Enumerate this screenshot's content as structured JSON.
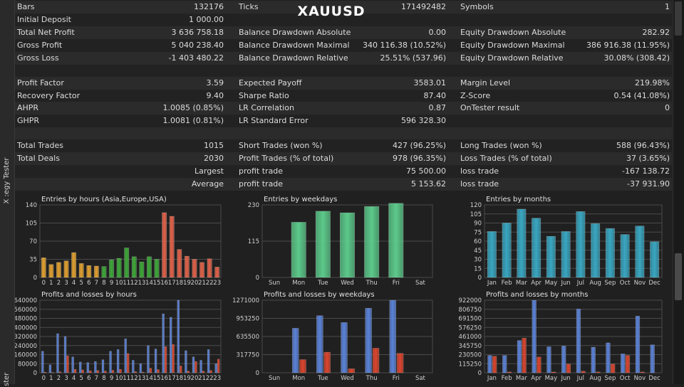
{
  "symbol_title": "XAUUSD",
  "panel_tab": "Strategy Tester",
  "panel_tab_visible": "X :egy Tester",
  "panel_tab_bottom": "ster",
  "rows": [
    {
      "c1": [
        "Bars",
        "132176"
      ],
      "c2": [
        "Ticks",
        "171492482"
      ],
      "c3": [
        "Symbols",
        "1"
      ]
    },
    {
      "c1": [
        "Initial Deposit",
        "1 000.00"
      ],
      "c2": [
        "",
        ""
      ],
      "c3": [
        "",
        ""
      ]
    },
    {
      "c1": [
        "Total Net Profit",
        "3 636 758.18"
      ],
      "c2": [
        "Balance Drawdown Absolute",
        "0.00"
      ],
      "c3": [
        "Equity Drawdown Absolute",
        "282.92"
      ]
    },
    {
      "c1": [
        "Gross Profit",
        "5 040 238.40"
      ],
      "c2": [
        "Balance Drawdown Maximal",
        "340 116.38 (10.52%)"
      ],
      "c3": [
        "Equity Drawdown Maximal",
        "386 916.38 (11.95%)"
      ]
    },
    {
      "c1": [
        "Gross Loss",
        "-1 403 480.22"
      ],
      "c2": [
        "Balance Drawdown Relative",
        "25.51% (537.96)"
      ],
      "c3": [
        "Equity Drawdown Relative",
        "30.08% (308.42)"
      ]
    },
    {
      "c1": [
        "",
        ""
      ],
      "c2": [
        "",
        ""
      ],
      "c3": [
        "",
        ""
      ]
    },
    {
      "c1": [
        "Profit Factor",
        "3.59"
      ],
      "c2": [
        "Expected Payoff",
        "3583.01"
      ],
      "c3": [
        "Margin Level",
        "219.98%"
      ]
    },
    {
      "c1": [
        "Recovery Factor",
        "9.40"
      ],
      "c2": [
        "Sharpe Ratio",
        "87.40"
      ],
      "c3": [
        "Z-Score",
        "0.54 (41.08%)"
      ]
    },
    {
      "c1": [
        "AHPR",
        "1.0085 (0.85%)"
      ],
      "c2": [
        "LR Correlation",
        "0.87"
      ],
      "c3": [
        "OnTester result",
        "0"
      ]
    },
    {
      "c1": [
        "GHPR",
        "1.0081 (0.81%)"
      ],
      "c2": [
        "LR Standard Error",
        "596 328.30"
      ],
      "c3": [
        "",
        ""
      ]
    },
    {
      "c1": [
        "",
        ""
      ],
      "c2": [
        "",
        ""
      ],
      "c3": [
        "",
        ""
      ]
    },
    {
      "c1": [
        "Total Trades",
        "1015"
      ],
      "c2": [
        "Short Trades (won %)",
        "427 (96.25%)"
      ],
      "c3": [
        "Long Trades (won %)",
        "588 (96.43%)"
      ]
    },
    {
      "c1": [
        "Total Deals",
        "2030"
      ],
      "c2": [
        "Profit Trades (% of total)",
        "978 (96.35%)"
      ],
      "c3": [
        "Loss Trades (% of total)",
        "37 (3.65%)"
      ]
    },
    {
      "c1": [
        "",
        "Largest"
      ],
      "c2": [
        "profit trade",
        "75 500.00"
      ],
      "c3": [
        "loss trade",
        "-167 138.72"
      ]
    },
    {
      "c1": [
        "",
        "Average"
      ],
      "c2": [
        "profit trade",
        "5 153.62"
      ],
      "c3": [
        "loss trade",
        "-37 931.90"
      ]
    }
  ],
  "colors": {
    "orange": "#e0a030",
    "green": "#3fa83a",
    "red": "#e0624a",
    "weekday_green": "#5cc98a",
    "teal": "#3aa6c0",
    "profit_blue": "#5b82d6",
    "loss_red": "#d9452f"
  },
  "chart_data": [
    {
      "type": "bar",
      "title": "Entries by hours (Asia,Europe,USA)",
      "categories": [
        "0",
        "1",
        "2",
        "3",
        "4",
        "5",
        "6",
        "7",
        "8",
        "9",
        "10",
        "11",
        "12",
        "13",
        "14",
        "15",
        "16",
        "17",
        "18",
        "19",
        "20",
        "21",
        "22",
        "23"
      ],
      "values": [
        38,
        25,
        29,
        32,
        48,
        27,
        23,
        22,
        21,
        34,
        37,
        57,
        40,
        30,
        40,
        35,
        125,
        118,
        54,
        41,
        35,
        29,
        36,
        20
      ],
      "bar_colors": [
        "orange",
        "orange",
        "orange",
        "orange",
        "orange",
        "orange",
        "orange",
        "orange",
        "green",
        "green",
        "green",
        "green",
        "green",
        "green",
        "green",
        "green",
        "red",
        "red",
        "red",
        "red",
        "red",
        "red",
        "red",
        "red"
      ],
      "yticks": [
        "140",
        "105",
        "70",
        "35",
        "0"
      ],
      "ylim": [
        0,
        140
      ]
    },
    {
      "type": "bar",
      "title": "Entries by weekdays",
      "categories": [
        "Sun",
        "Mon",
        "Tue",
        "Wed",
        "Thu",
        "Fri",
        "Sat"
      ],
      "values": [
        0,
        175,
        210,
        205,
        225,
        235,
        0
      ],
      "yticks": [
        "230",
        "115",
        "0"
      ],
      "ylim": [
        0,
        230
      ]
    },
    {
      "type": "bar",
      "title": "Entries by months",
      "categories": [
        "Jan",
        "Feb",
        "Mar",
        "Apr",
        "May",
        "Jun",
        "Jul",
        "Aug",
        "Sep",
        "Oct",
        "Nov",
        "Dec"
      ],
      "values": [
        76,
        90,
        113,
        98,
        68,
        76,
        109,
        89,
        81,
        71,
        85,
        59
      ],
      "yticks": [
        "120",
        "105",
        "90",
        "75",
        "60",
        "45",
        "30",
        "15",
        "0"
      ],
      "ylim": [
        0,
        120
      ]
    },
    {
      "type": "bar",
      "title": "Profits and losses by hours",
      "categories": [
        "0",
        "1",
        "2",
        "3",
        "4",
        "5",
        "6",
        "7",
        "8",
        "9",
        "10",
        "11",
        "12",
        "13",
        "14",
        "15",
        "16",
        "17",
        "18",
        "19",
        "20",
        "21",
        "22",
        "23"
      ],
      "series": [
        {
          "name": "profit",
          "values": [
            190000,
            70000,
            345000,
            320000,
            140000,
            95000,
            90000,
            100000,
            115000,
            190000,
            205000,
            300000,
            110000,
            80000,
            240000,
            210000,
            520000,
            490000,
            640000,
            195000,
            140000,
            110000,
            205000,
            80000
          ]
        },
        {
          "name": "loss",
          "values": [
            5000,
            3000,
            8000,
            150000,
            30000,
            25000,
            18000,
            20000,
            15000,
            22000,
            30000,
            170000,
            10000,
            6000,
            40000,
            28000,
            230000,
            250000,
            60000,
            15000,
            100000,
            15000,
            20000,
            120000
          ]
        }
      ],
      "yticks": [
        "640000",
        "560000",
        "480000",
        "400000",
        "320000",
        "240000",
        "160000",
        "80000",
        "0"
      ],
      "ylim": [
        0,
        640000
      ]
    },
    {
      "type": "bar",
      "title": "Profits and losses by weekdays",
      "categories": [
        "Sun",
        "Mon",
        "Tue",
        "Wed",
        "Thu",
        "Fri",
        "Sat"
      ],
      "series": [
        {
          "name": "profit",
          "values": [
            0,
            780000,
            1000000,
            880000,
            1130000,
            1271000,
            0
          ]
        },
        {
          "name": "loss",
          "values": [
            0,
            230000,
            360000,
            70000,
            430000,
            340000,
            0
          ]
        }
      ],
      "yticks": [
        "1271000",
        "953250",
        "635500",
        "317750",
        "0"
      ],
      "ylim": [
        0,
        1271000
      ]
    },
    {
      "type": "bar",
      "title": "Profits and losses by months",
      "categories": [
        "Jan",
        "Feb",
        "Mar",
        "Apr",
        "May",
        "Jun",
        "Jul",
        "Aug",
        "Sep",
        "Oct",
        "Nov",
        "Dec"
      ],
      "series": [
        {
          "name": "profit",
          "values": [
            220000,
            220000,
            410000,
            922000,
            330000,
            340000,
            810000,
            325000,
            380000,
            240000,
            720000,
            355000
          ]
        },
        {
          "name": "loss",
          "values": [
            210000,
            10000,
            440000,
            200000,
            10000,
            110000,
            20000,
            10000,
            110000,
            220000,
            10000,
            0
          ]
        }
      ],
      "yticks": [
        "922000",
        "806750",
        "691500",
        "576250",
        "461000",
        "345750",
        "230500",
        "115250",
        "0"
      ],
      "ylim": [
        0,
        922000
      ]
    }
  ]
}
